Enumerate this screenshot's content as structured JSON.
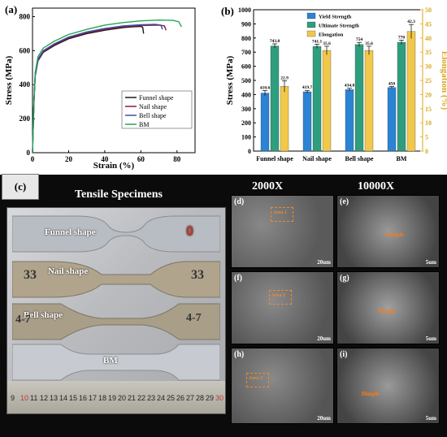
{
  "panel_a": {
    "label": "(a)"
  },
  "panel_b": {
    "label": "(b)"
  },
  "panel_c": {
    "label": "(c)",
    "specimen_title": "Tensile Specimens",
    "mag_low": "2000X",
    "mag_high": "10000X",
    "specimen_labels": [
      "Funnel shape",
      "Nail shape",
      "Bell shape",
      "BM"
    ],
    "handwritten": [
      "33",
      "33",
      "4-7",
      "4-7"
    ],
    "ruler_numbers": [
      "9",
      "10",
      "11",
      "12",
      "13",
      "14",
      "15",
      "16",
      "17",
      "18",
      "19",
      "20",
      "21",
      "22",
      "23",
      "24",
      "25",
      "26",
      "27",
      "28",
      "29",
      "30"
    ],
    "sem_panels": [
      {
        "label": "(d)",
        "scale": "20um",
        "note": "Area 1"
      },
      {
        "label": "(e)",
        "scale": "5um",
        "note": "Dimple"
      },
      {
        "label": "(f)",
        "scale": "20um",
        "note": "Area 2"
      },
      {
        "label": "(g)",
        "scale": "5um",
        "note": "Dimple"
      },
      {
        "label": "(h)",
        "scale": "20um",
        "note": "Area 3"
      },
      {
        "label": "(i)",
        "scale": "5um",
        "note": "Dimple"
      }
    ]
  },
  "colors": {
    "funnel": "#1a1a1a",
    "nail": "#8b1a3a",
    "bell": "#3a4fa8",
    "bm": "#27a35a",
    "yield": "#2b83d4",
    "ultimate": "#2e9e7e",
    "elong": "#f2c84b"
  },
  "chart_data": [
    {
      "type": "line",
      "xlabel": "Strain (%)",
      "ylabel": "Stress (MPa)",
      "xlim": [
        0,
        90
      ],
      "ylim": [
        0,
        850
      ],
      "xticks": [
        0,
        20,
        40,
        60,
        80
      ],
      "yticks": [
        0,
        200,
        400,
        600,
        800
      ],
      "legend_position": "bottom-right",
      "series": [
        {
          "name": "Funnel shape",
          "x": [
            0,
            0.8,
            1.5,
            3,
            6,
            12,
            20,
            30,
            40,
            50,
            55,
            60,
            61,
            61.5
          ],
          "y": [
            0,
            300,
            450,
            540,
            590,
            630,
            670,
            700,
            720,
            735,
            740,
            742,
            738,
            700
          ]
        },
        {
          "name": "Nail shape",
          "x": [
            0,
            0.8,
            1.5,
            3,
            6,
            12,
            20,
            30,
            40,
            50,
            60,
            70,
            73,
            74
          ],
          "y": [
            0,
            300,
            455,
            545,
            595,
            635,
            675,
            705,
            725,
            740,
            748,
            750,
            746,
            720
          ]
        },
        {
          "name": "Bell shape",
          "x": [
            0,
            0.8,
            1.5,
            3,
            6,
            12,
            20,
            30,
            40,
            50,
            60,
            68,
            71,
            72
          ],
          "y": [
            0,
            300,
            455,
            550,
            600,
            640,
            680,
            710,
            730,
            745,
            752,
            755,
            750,
            725
          ]
        },
        {
          "name": "BM",
          "x": [
            0,
            0.8,
            1.5,
            3,
            6,
            12,
            20,
            30,
            40,
            50,
            60,
            70,
            78,
            81,
            82.5
          ],
          "y": [
            0,
            310,
            470,
            565,
            615,
            655,
            695,
            725,
            750,
            765,
            775,
            780,
            778,
            770,
            740
          ]
        }
      ]
    },
    {
      "type": "bar",
      "categories": [
        "Funnel shape",
        "Nail shape",
        "Bell shape",
        "BM"
      ],
      "ylabel": "Stress (MPa)",
      "y2label": "Elongation (%)",
      "ylim": [
        0,
        1000
      ],
      "y2lim": [
        0,
        50
      ],
      "yticks": [
        0,
        100,
        200,
        300,
        400,
        500,
        600,
        700,
        800,
        900,
        1000
      ],
      "y2ticks": [
        0,
        5,
        10,
        15,
        20,
        25,
        30,
        35,
        40,
        45,
        50
      ],
      "legend_position": "top-center",
      "series": [
        {
          "name": "Yield Strength",
          "axis": "left",
          "values": [
            410.6,
            419.7,
            434.8,
            450
          ],
          "labels": [
            "410.6",
            "419.7",
            "434.8",
            "450"
          ],
          "err": [
            18,
            10,
            10,
            6
          ]
        },
        {
          "name": "Ultimate Strength",
          "axis": "left",
          "values": [
            743.8,
            741.1,
            754,
            770
          ],
          "labels": [
            "743.8",
            "741.1",
            "754",
            "770"
          ],
          "err": [
            15,
            15,
            15,
            15
          ]
        },
        {
          "name": "Elongation",
          "axis": "right",
          "values": [
            22.9,
            35.6,
            35.6,
            42.3
          ],
          "labels": [
            "22.9",
            "35.6",
            "35.6",
            "42.3"
          ],
          "err": [
            2,
            1.5,
            1.5,
            2.5
          ]
        }
      ]
    }
  ]
}
